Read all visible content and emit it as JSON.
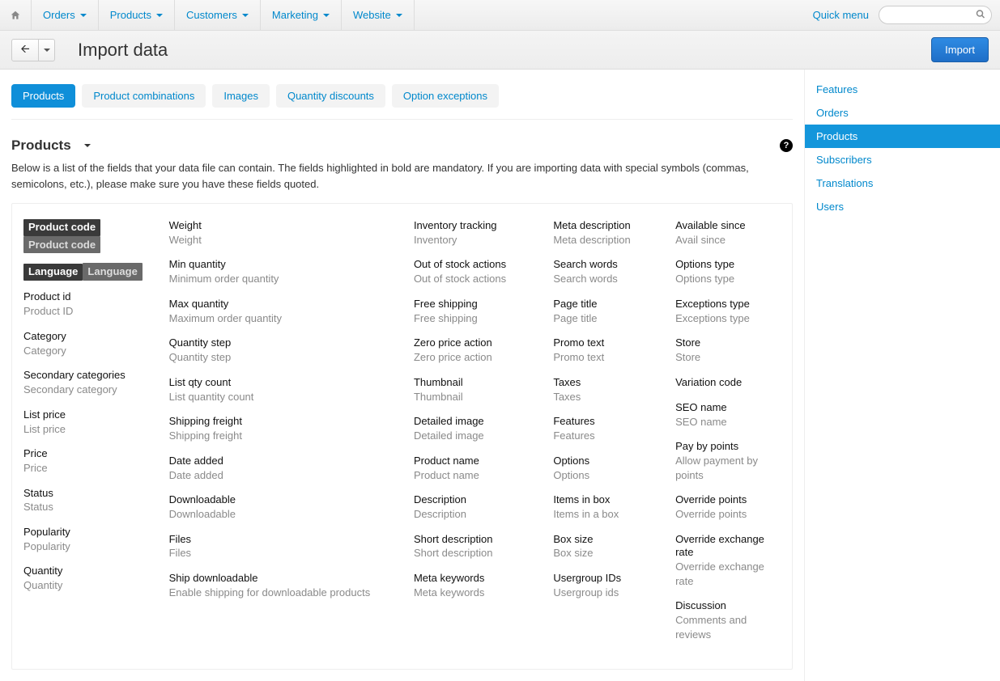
{
  "topnav": {
    "items": [
      "Orders",
      "Products",
      "Customers",
      "Marketing",
      "Website"
    ],
    "quick_menu": "Quick menu",
    "search_placeholder": ""
  },
  "titlebar": {
    "title": "Import data",
    "import_btn": "Import"
  },
  "subtabs": [
    "Products",
    "Product combinations",
    "Images",
    "Quantity discounts",
    "Option exceptions"
  ],
  "subtab_active": 0,
  "section": {
    "heading": "Products",
    "intro": "Below is a list of the fields that your data file can contain. The fields highlighted in bold are mandatory. If you are importing data with special symbols (commas, semicolons, etc.), please make sure you have these fields quoted."
  },
  "fields": {
    "col0": [
      {
        "t": "Product code",
        "s": "Product code",
        "mand": true
      },
      {
        "t": "Language",
        "s": "Language",
        "mand": true
      },
      {
        "t": "Product id",
        "s": "Product ID"
      },
      {
        "t": "Category",
        "s": "Category"
      },
      {
        "t": "Secondary categories",
        "s": "Secondary category"
      },
      {
        "t": "List price",
        "s": "List price"
      },
      {
        "t": "Price",
        "s": "Price"
      },
      {
        "t": "Status",
        "s": "Status"
      },
      {
        "t": "Popularity",
        "s": "Popularity"
      },
      {
        "t": "Quantity",
        "s": "Quantity"
      }
    ],
    "col1": [
      {
        "t": "Weight",
        "s": "Weight"
      },
      {
        "t": "Min quantity",
        "s": "Minimum order quantity"
      },
      {
        "t": "Max quantity",
        "s": "Maximum order quantity"
      },
      {
        "t": "Quantity step",
        "s": "Quantity step"
      },
      {
        "t": "List qty count",
        "s": "List quantity count"
      },
      {
        "t": "Shipping freight",
        "s": "Shipping freight"
      },
      {
        "t": "Date added",
        "s": "Date added"
      },
      {
        "t": "Downloadable",
        "s": "Downloadable"
      },
      {
        "t": "Files",
        "s": "Files"
      },
      {
        "t": "Ship downloadable",
        "s": "Enable shipping for downloadable products"
      }
    ],
    "col2": [
      {
        "t": "Inventory tracking",
        "s": "Inventory"
      },
      {
        "t": "Out of stock actions",
        "s": "Out of stock actions"
      },
      {
        "t": "Free shipping",
        "s": "Free shipping"
      },
      {
        "t": "Zero price action",
        "s": "Zero price action"
      },
      {
        "t": "Thumbnail",
        "s": "Thumbnail"
      },
      {
        "t": "Detailed image",
        "s": "Detailed image"
      },
      {
        "t": "Product name",
        "s": "Product name"
      },
      {
        "t": "Description",
        "s": "Description"
      },
      {
        "t": "Short description",
        "s": "Short description"
      },
      {
        "t": "Meta keywords",
        "s": "Meta keywords"
      }
    ],
    "col3": [
      {
        "t": "Meta description",
        "s": "Meta description"
      },
      {
        "t": "Search words",
        "s": "Search words"
      },
      {
        "t": "Page title",
        "s": "Page title"
      },
      {
        "t": "Promo text",
        "s": "Promo text"
      },
      {
        "t": "Taxes",
        "s": "Taxes"
      },
      {
        "t": "Features",
        "s": "Features"
      },
      {
        "t": "Options",
        "s": "Options"
      },
      {
        "t": "Items in box",
        "s": "Items in a box"
      },
      {
        "t": "Box size",
        "s": "Box size"
      },
      {
        "t": "Usergroup IDs",
        "s": "Usergroup ids"
      }
    ],
    "col4": [
      {
        "t": "Available since",
        "s": "Avail since"
      },
      {
        "t": "Options type",
        "s": "Options type"
      },
      {
        "t": "Exceptions type",
        "s": "Exceptions type"
      },
      {
        "t": "Store",
        "s": "Store"
      },
      {
        "t": "Variation code",
        "s": ""
      },
      {
        "t": "SEO name",
        "s": "SEO name"
      },
      {
        "t": "Pay by points",
        "s": "Allow payment by points"
      },
      {
        "t": "Override points",
        "s": "Override points"
      },
      {
        "t": "Override exchange rate",
        "s": "Override exchange rate"
      },
      {
        "t": "Discussion",
        "s": "Comments and reviews"
      }
    ]
  },
  "sidebar": {
    "items": [
      "Features",
      "Orders",
      "Products",
      "Subscribers",
      "Translations",
      "Users"
    ],
    "active": 2
  }
}
